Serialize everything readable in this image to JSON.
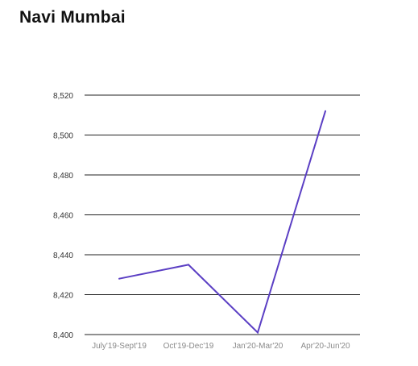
{
  "chart_data": {
    "type": "line",
    "title": "Navi Mumbai",
    "xlabel": "",
    "ylabel": "",
    "categories": [
      "July'19-Sept'19",
      "Oct'19-Dec'19",
      "Jan'20-Mar'20",
      "Apr'20-Jun'20"
    ],
    "series": [
      {
        "values": [
          8428,
          8435,
          8401,
          8512
        ],
        "color": "#5b3fc4"
      }
    ],
    "ylim": [
      8400,
      8520
    ],
    "yticks": [
      8400,
      8420,
      8440,
      8460,
      8480,
      8500,
      8520
    ],
    "ytick_labels": [
      "8,400",
      "8,420",
      "8,440",
      "8,460",
      "8,480",
      "8,500",
      "8,520"
    ],
    "grid": true,
    "legend": "none"
  }
}
